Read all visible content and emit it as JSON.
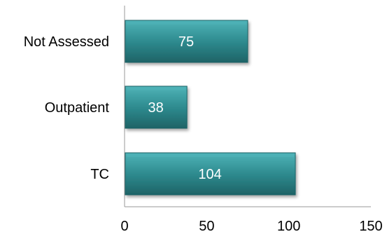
{
  "chart_data": {
    "type": "bar",
    "orientation": "horizontal",
    "categories": [
      "Not Assessed",
      "Outpatient",
      "TC"
    ],
    "values": [
      75,
      38,
      104
    ],
    "data_labels": [
      "75",
      "38",
      "104"
    ],
    "xlim": [
      0,
      150
    ],
    "x_ticks": [
      0,
      50,
      100,
      150
    ],
    "x_tick_labels": [
      "0",
      "50",
      "100",
      "150"
    ],
    "title": "",
    "xlabel": "",
    "ylabel": "",
    "grid": false,
    "legend": "none",
    "colors": {
      "bar_fill": "#2E8B8F",
      "bar_fill_light": "#4FB3B7",
      "bar_fill_dark": "#1E6366",
      "axis": "#999999",
      "data_label": "#ffffff"
    }
  }
}
